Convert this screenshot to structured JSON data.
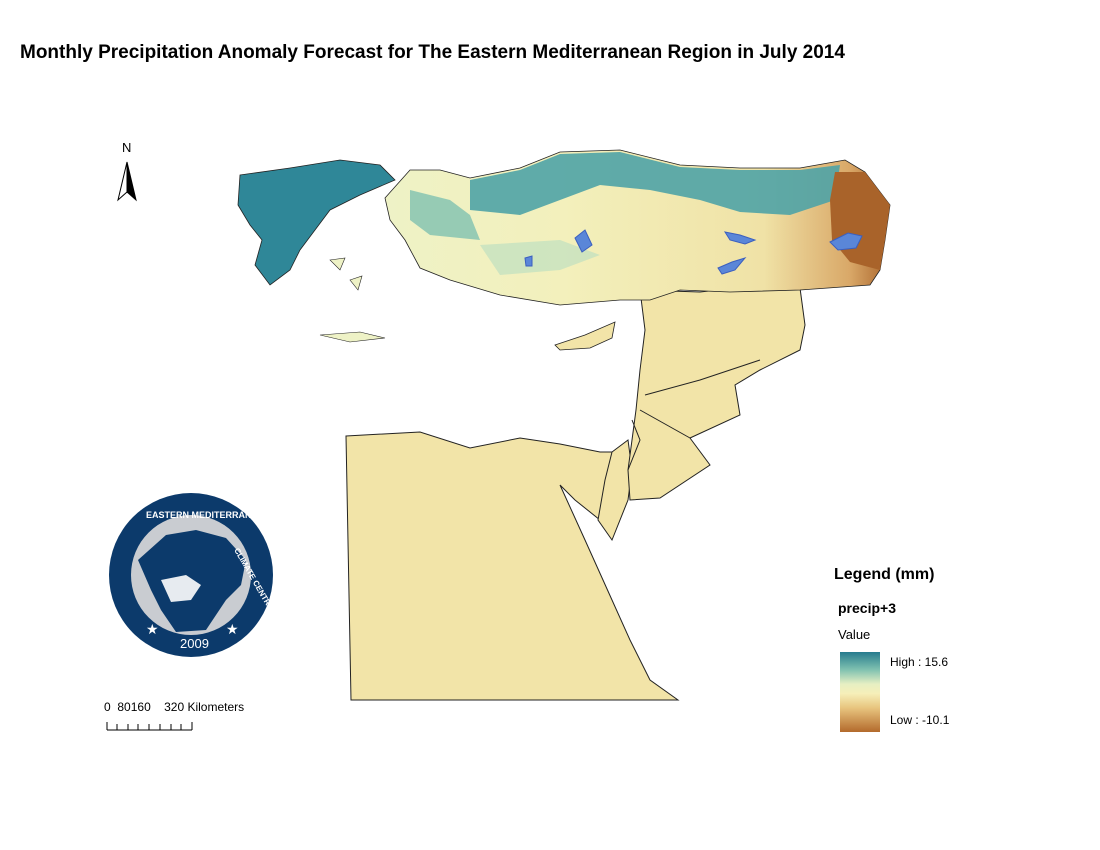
{
  "title": "Monthly Precipitation Anomaly Forecast for The Eastern Mediterranean Region in July 2014",
  "north_arrow": {
    "letter": "N",
    "icon": "north-arrow-icon"
  },
  "logo": {
    "top_text": "EASTERN MEDITERRANEAN",
    "right_text": "CLIMATE CENTRE",
    "year": "2009",
    "colors": {
      "ring": "#0c3a6b",
      "land": "#0c3a6b",
      "gray": "#c9ccd1"
    }
  },
  "scale_bar": {
    "ticks": [
      "0",
      "80",
      "160",
      "320"
    ],
    "units": "Kilometers"
  },
  "legend": {
    "title": "Legend (mm)",
    "layer": "precip+3",
    "field": "Value",
    "high_label": "High : 15.6",
    "low_label": "Low : -10.1",
    "ramp_colors": [
      "#267b8e",
      "#7fc1b0",
      "#e6efc3",
      "#f6efb9",
      "#e8c47e",
      "#b36a2c"
    ]
  },
  "map_colors": {
    "wet": "#2f8798",
    "moist": "#8cc6b2",
    "neutral": "#eef2c6",
    "dry_light": "#f2e4a8",
    "dry": "#c78a45",
    "very_dry": "#9d5a25",
    "water": "#5a86d8",
    "border": "#222222"
  }
}
